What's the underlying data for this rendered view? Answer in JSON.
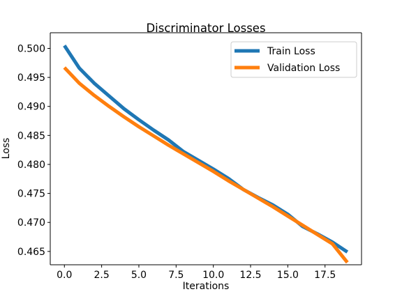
{
  "chart_data": {
    "type": "line",
    "title": "Discriminator Losses",
    "xlabel": "Iterations",
    "ylabel": "Loss",
    "xlim": [
      -0.95,
      19.95
    ],
    "ylim": [
      0.4627,
      0.5027
    ],
    "xticks": [
      0.0,
      2.5,
      5.0,
      7.5,
      10.0,
      12.5,
      15.0,
      17.5
    ],
    "xtick_labels": [
      "0.0",
      "2.5",
      "5.0",
      "7.5",
      "10.0",
      "12.5",
      "15.0",
      "17.5"
    ],
    "yticks": [
      0.465,
      0.47,
      0.475,
      0.48,
      0.485,
      0.49,
      0.495,
      0.5
    ],
    "ytick_labels": [
      "0.465",
      "0.470",
      "0.475",
      "0.480",
      "0.485",
      "0.490",
      "0.495",
      "0.500"
    ],
    "grid": false,
    "legend_position": "top-right",
    "x": [
      0,
      1,
      2,
      3,
      4,
      5,
      6,
      7,
      8,
      9,
      10,
      11,
      12,
      13,
      14,
      15,
      16,
      17,
      18,
      19
    ],
    "series": [
      {
        "name": "Train Loss",
        "color": "#1f77b4",
        "values": [
          0.5005,
          0.4966,
          0.494,
          0.4918,
          0.4896,
          0.4877,
          0.4859,
          0.4842,
          0.4822,
          0.4807,
          0.4792,
          0.4776,
          0.4757,
          0.4743,
          0.473,
          0.4714,
          0.4693,
          0.468,
          0.4666,
          0.4649
        ]
      },
      {
        "name": "Validation Loss",
        "color": "#ff7f0e",
        "values": [
          0.4967,
          0.494,
          0.4919,
          0.49,
          0.4882,
          0.4865,
          0.4849,
          0.4833,
          0.4818,
          0.4803,
          0.4788,
          0.4772,
          0.4757,
          0.4742,
          0.4727,
          0.4711,
          0.4695,
          0.4679,
          0.4663,
          0.4631
        ]
      }
    ]
  }
}
